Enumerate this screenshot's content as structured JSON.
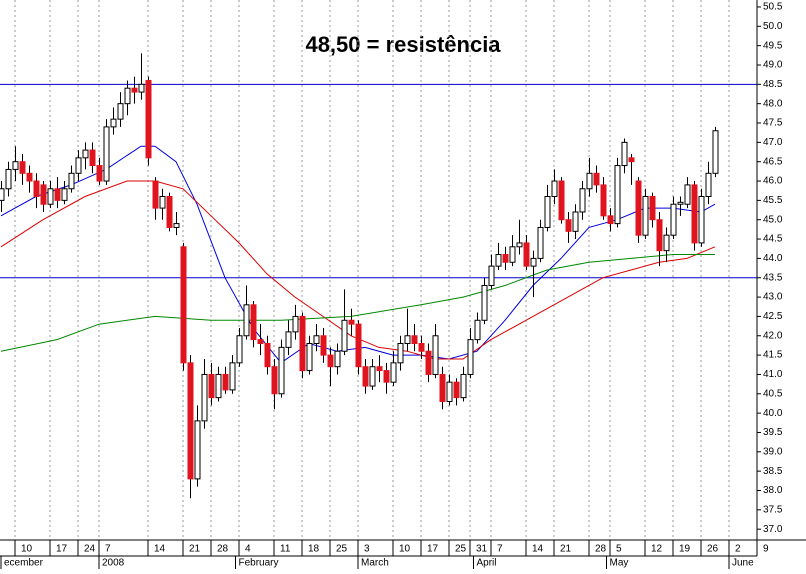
{
  "chart_data": {
    "type": "candlestick",
    "title": "48,50 = resistência",
    "title_color": "#e0141e",
    "ylim": [
      36.72,
      50.68
    ],
    "yticks": [
      {
        "value": 37,
        "label": "37.0"
      },
      37.5,
      {
        "value": 38,
        "label": "38.0"
      },
      38.5,
      {
        "value": 39,
        "label": "39.0"
      },
      39.5,
      {
        "value": 40,
        "label": "40.0"
      },
      40.5,
      {
        "value": 41,
        "label": "41.0"
      },
      41.5,
      {
        "value": 42,
        "label": "42.0"
      },
      42.5,
      {
        "value": 43,
        "label": "43.0"
      },
      43.5,
      {
        "value": 44,
        "label": "44.0"
      },
      44.5,
      {
        "value": 45,
        "label": "45.0"
      },
      45.5,
      {
        "value": 46,
        "label": "46.0"
      },
      46.5,
      {
        "value": 47,
        "label": "47.0"
      },
      47.5,
      {
        "value": 48,
        "label": "48.0"
      },
      48.5,
      {
        "value": 49,
        "label": "49.0"
      },
      49.5,
      {
        "value": 50,
        "label": "50.0"
      },
      50.5
    ],
    "xlim": [
      0,
      108
    ],
    "xticks": [
      {
        "value": 2,
        "label": "10"
      },
      {
        "value": 7,
        "label": "17"
      },
      {
        "value": 11,
        "label": "24"
      },
      {
        "value": 14,
        "label": "7"
      },
      {
        "value": 21,
        "label": "14"
      },
      {
        "value": 26,
        "label": "21"
      },
      {
        "value": 30,
        "label": "28"
      },
      {
        "value": 34,
        "label": "4"
      },
      {
        "value": 39,
        "label": "11"
      },
      {
        "value": 43,
        "label": "18"
      },
      {
        "value": 47,
        "label": "25"
      },
      {
        "value": 51,
        "label": "3"
      },
      {
        "value": 56,
        "label": "10"
      },
      {
        "value": 60,
        "label": "17"
      },
      {
        "value": 64,
        "label": "25"
      },
      {
        "value": 67,
        "label": "31"
      },
      {
        "value": 70,
        "label": "7"
      },
      {
        "value": 75,
        "label": "14"
      },
      {
        "value": 79,
        "label": "21"
      },
      {
        "value": 84,
        "label": "28"
      },
      {
        "value": 87,
        "label": "5"
      },
      {
        "value": 92,
        "label": "12"
      },
      {
        "value": 96,
        "label": "19"
      },
      {
        "value": 100,
        "label": "26"
      },
      {
        "value": 104,
        "label": "2"
      },
      {
        "value": 108,
        "label": "9"
      }
    ],
    "month_labels": [
      {
        "value": 0,
        "label": "ecember"
      },
      {
        "value": 14,
        "label": "2008"
      },
      {
        "value": 33.5,
        "label": "February"
      },
      {
        "value": 51,
        "label": "March"
      },
      {
        "value": 67.5,
        "label": "April"
      },
      {
        "value": 86.5,
        "label": "May"
      },
      {
        "value": 104,
        "label": "June"
      }
    ],
    "grid": true,
    "up_color": "#ffffff",
    "down_color": "#e0141e",
    "ohlc": [
      [
        45.5,
        46.0,
        45.2,
        45.8
      ],
      [
        45.8,
        46.5,
        45.6,
        46.3
      ],
      [
        46.3,
        46.9,
        46.0,
        46.5
      ],
      [
        46.5,
        46.7,
        45.9,
        46.2
      ],
      [
        46.2,
        46.4,
        45.7,
        46.0
      ],
      [
        46.0,
        46.2,
        45.3,
        45.6
      ],
      [
        45.9,
        46.0,
        45.2,
        45.4
      ],
      [
        45.4,
        46.0,
        45.3,
        45.8
      ],
      [
        45.8,
        46.1,
        45.3,
        45.5
      ],
      [
        45.5,
        46.0,
        45.4,
        45.8
      ],
      [
        45.8,
        46.4,
        45.7,
        46.2
      ],
      [
        46.2,
        46.8,
        46.0,
        46.6
      ],
      [
        46.6,
        47.0,
        46.3,
        46.8
      ],
      [
        46.8,
        47.0,
        46.2,
        46.4
      ],
      [
        46.4,
        46.6,
        45.9,
        46.0
      ],
      [
        46.0,
        47.6,
        45.9,
        47.4
      ],
      [
        47.4,
        47.9,
        47.2,
        47.6
      ],
      [
        47.6,
        48.3,
        47.4,
        48.0
      ],
      [
        48.0,
        48.6,
        47.7,
        48.4
      ],
      [
        48.4,
        48.7,
        48.0,
        48.3
      ],
      [
        48.3,
        49.3,
        48.1,
        48.5
      ],
      [
        48.6,
        48.7,
        46.4,
        46.6
      ],
      [
        46.0,
        46.1,
        45.0,
        45.3
      ],
      [
        45.3,
        45.8,
        45.0,
        45.6
      ],
      [
        45.6,
        45.7,
        44.7,
        44.8
      ],
      [
        44.8,
        45.2,
        44.6,
        44.9
      ],
      [
        44.3,
        44.4,
        41.1,
        41.3
      ],
      [
        41.3,
        41.5,
        37.8,
        38.3
      ],
      [
        38.3,
        40.2,
        38.1,
        39.8
      ],
      [
        39.8,
        41.4,
        39.6,
        41.0
      ],
      [
        41.0,
        41.3,
        40.2,
        40.4
      ],
      [
        40.4,
        41.2,
        40.3,
        41.0
      ],
      [
        41.0,
        41.2,
        40.5,
        40.6
      ],
      [
        40.6,
        41.5,
        40.5,
        41.3
      ],
      [
        41.3,
        42.2,
        41.2,
        42.0
      ],
      [
        42.0,
        43.3,
        41.9,
        42.8
      ],
      [
        42.8,
        42.9,
        41.7,
        41.9
      ],
      [
        41.9,
        42.3,
        41.5,
        41.8
      ],
      [
        41.8,
        42.0,
        41.0,
        41.2
      ],
      [
        41.2,
        41.4,
        40.1,
        40.5
      ],
      [
        40.5,
        41.9,
        40.4,
        41.7
      ],
      [
        41.7,
        42.4,
        41.5,
        42.1
      ],
      [
        42.1,
        42.8,
        41.9,
        42.5
      ],
      [
        42.5,
        42.6,
        40.9,
        41.1
      ],
      [
        41.1,
        42.0,
        41.0,
        41.8
      ],
      [
        41.8,
        42.3,
        41.6,
        42.0
      ],
      [
        42.0,
        42.2,
        41.3,
        41.5
      ],
      [
        41.5,
        41.7,
        40.7,
        41.2
      ],
      [
        41.2,
        41.8,
        41.0,
        41.6
      ],
      [
        41.6,
        43.2,
        41.5,
        42.4
      ],
      [
        42.4,
        42.7,
        42.0,
        42.3
      ],
      [
        42.3,
        42.4,
        41.0,
        41.2
      ],
      [
        41.2,
        41.4,
        40.5,
        40.7
      ],
      [
        40.7,
        41.4,
        40.6,
        41.2
      ],
      [
        41.2,
        41.5,
        40.8,
        41.1
      ],
      [
        41.1,
        41.3,
        40.5,
        40.8
      ],
      [
        40.8,
        41.6,
        40.7,
        41.3
      ],
      [
        41.3,
        42.0,
        41.1,
        41.8
      ],
      [
        41.8,
        42.7,
        41.6,
        42.0
      ],
      [
        42.0,
        42.3,
        41.6,
        41.8
      ],
      [
        41.8,
        42.0,
        41.4,
        41.6
      ],
      [
        41.6,
        41.8,
        40.8,
        41.0
      ],
      [
        41.0,
        42.3,
        40.9,
        42.0
      ],
      [
        41.0,
        41.2,
        40.1,
        40.3
      ],
      [
        40.3,
        41.0,
        40.2,
        40.8
      ],
      [
        40.8,
        40.9,
        40.2,
        40.4
      ],
      [
        40.4,
        41.2,
        40.3,
        41.0
      ],
      [
        41.0,
        42.2,
        40.9,
        41.9
      ],
      [
        41.9,
        42.6,
        41.8,
        42.4
      ],
      [
        42.4,
        43.5,
        42.3,
        43.3
      ],
      [
        43.3,
        44.1,
        43.2,
        43.8
      ],
      [
        43.8,
        44.4,
        43.7,
        44.1
      ],
      [
        44.1,
        44.3,
        43.7,
        43.9
      ],
      [
        43.9,
        44.6,
        43.8,
        44.3
      ],
      [
        44.3,
        45.0,
        44.1,
        44.4
      ],
      [
        44.4,
        44.6,
        43.7,
        43.8
      ],
      [
        43.8,
        44.2,
        43.0,
        44.0
      ],
      [
        44.0,
        45.0,
        43.9,
        44.8
      ],
      [
        44.8,
        45.9,
        44.7,
        45.6
      ],
      [
        45.6,
        46.3,
        45.4,
        46.0
      ],
      [
        46.0,
        46.1,
        44.9,
        45.0
      ],
      [
        45.0,
        45.2,
        44.4,
        44.7
      ],
      [
        44.7,
        45.4,
        44.5,
        45.2
      ],
      [
        45.2,
        46.0,
        45.0,
        45.8
      ],
      [
        45.8,
        46.6,
        45.6,
        46.2
      ],
      [
        46.2,
        46.4,
        45.7,
        45.9
      ],
      [
        45.9,
        46.1,
        45.0,
        45.1
      ],
      [
        45.1,
        45.3,
        44.7,
        44.9
      ],
      [
        44.9,
        46.6,
        44.8,
        46.4
      ],
      [
        46.4,
        47.1,
        46.2,
        47.0
      ],
      [
        46.6,
        46.7,
        45.9,
        46.5
      ],
      [
        46.0,
        46.1,
        44.4,
        44.6
      ],
      [
        44.6,
        45.8,
        44.5,
        45.6
      ],
      [
        45.6,
        45.7,
        44.8,
        45.0
      ],
      [
        45.0,
        45.2,
        43.8,
        44.2
      ],
      [
        44.2,
        44.8,
        43.9,
        44.6
      ],
      [
        44.6,
        45.6,
        44.5,
        45.4
      ],
      [
        45.4,
        45.6,
        45.1,
        45.45
      ],
      [
        45.4,
        46.1,
        45.3,
        45.9
      ],
      [
        45.9,
        46.0,
        44.2,
        44.4
      ],
      [
        44.4,
        45.8,
        44.3,
        45.6
      ],
      [
        45.6,
        46.5,
        45.4,
        46.2
      ],
      [
        46.2,
        47.4,
        46.1,
        47.3
      ]
    ],
    "lines": [
      {
        "color": "#0000dd",
        "x": [
          0,
          5,
          10,
          15,
          20,
          22,
          25,
          28,
          32,
          36,
          40,
          44,
          48,
          52,
          56,
          60,
          64,
          68,
          72,
          76,
          80,
          84,
          88,
          92,
          96,
          100,
          102
        ],
        "values": [
          45.1,
          45.6,
          45.9,
          46.3,
          46.9,
          46.9,
          46.5,
          45.4,
          43.5,
          42.2,
          41.3,
          41.8,
          41.6,
          41.7,
          41.5,
          41.5,
          41.4,
          41.6,
          42.4,
          43.3,
          44.0,
          44.8,
          45.0,
          45.3,
          45.3,
          45.2,
          45.4
        ]
      },
      {
        "color": "#dd0000",
        "x": [
          0,
          6,
          12,
          18,
          22,
          26,
          30,
          34,
          38,
          42,
          46,
          50,
          54,
          58,
          62,
          66,
          70,
          74,
          78,
          82,
          86,
          90,
          94,
          98,
          102
        ],
        "values": [
          44.3,
          45.0,
          45.6,
          46.0,
          46.0,
          45.8,
          45.1,
          44.4,
          43.6,
          43.0,
          42.5,
          42.0,
          41.7,
          41.6,
          41.4,
          41.4,
          41.9,
          42.3,
          42.7,
          43.1,
          43.5,
          43.7,
          43.9,
          44.0,
          44.3
        ]
      },
      {
        "color": "#008800",
        "x": [
          0,
          8,
          14,
          18,
          22,
          30,
          40,
          50,
          60,
          66,
          72,
          78,
          84,
          90,
          96,
          102
        ],
        "values": [
          41.6,
          41.9,
          42.3,
          42.4,
          42.5,
          42.4,
          42.4,
          42.5,
          42.8,
          43.0,
          43.3,
          43.7,
          43.9,
          44.0,
          44.1,
          44.1
        ]
      }
    ],
    "hlines": [
      48.5,
      43.5
    ],
    "hline_color": "#0000cc"
  }
}
